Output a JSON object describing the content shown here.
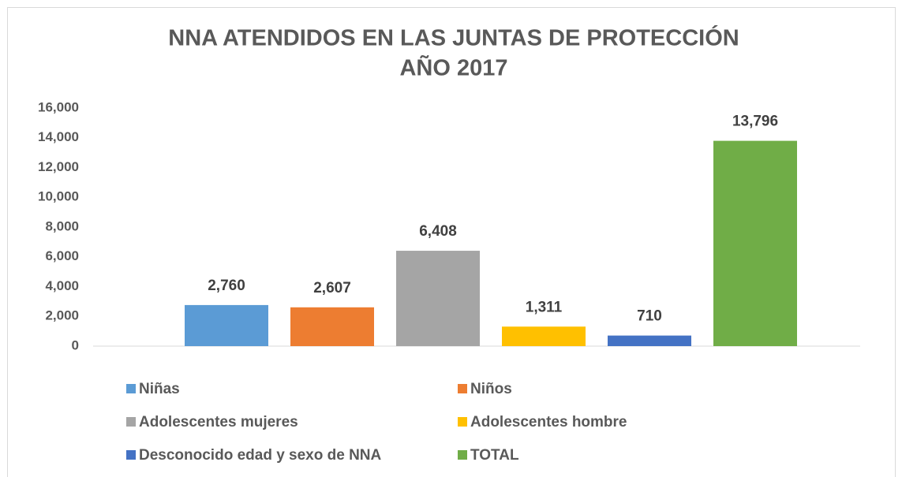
{
  "chart_data": {
    "type": "bar",
    "title": [
      "NNA ATENDIDOS EN LAS JUNTAS DE PROTECCIÓN",
      "AÑO 2017"
    ],
    "categories": [
      null
    ],
    "series": [
      {
        "name": "Niñas",
        "color": "#5b9bd5",
        "values": [
          2760
        ],
        "value_labels": [
          "2,760"
        ]
      },
      {
        "name": "Niños",
        "color": "#ed7d31",
        "values": [
          2607
        ],
        "value_labels": [
          "2,607"
        ]
      },
      {
        "name": "Adolescentes mujeres",
        "color": "#a5a5a5",
        "values": [
          6408
        ],
        "value_labels": [
          "6,408"
        ]
      },
      {
        "name": "Adolescentes hombre",
        "color": "#ffc000",
        "values": [
          1311
        ],
        "value_labels": [
          "1,311"
        ]
      },
      {
        "name": "Desconocido edad y sexo de NNA",
        "color": "#4472c4",
        "values": [
          710
        ],
        "value_labels": [
          "710"
        ]
      },
      {
        "name": "TOTAL",
        "color": "#70ad47",
        "values": [
          13796
        ],
        "value_labels": [
          "13,796"
        ]
      }
    ],
    "ylim": [
      0,
      16000
    ],
    "yticks": [
      0,
      {
        "value": 2000,
        "label": "2,000"
      },
      {
        "value": 4000,
        "label": "4,000"
      },
      {
        "value": 6000,
        "label": "6,000"
      },
      {
        "value": 8000,
        "label": "8,000"
      },
      {
        "value": 10000,
        "label": "10,000"
      },
      {
        "value": 12000,
        "label": "12,000"
      },
      {
        "value": 14000,
        "label": "14,000"
      },
      {
        "value": 16000,
        "label": "16,000"
      }
    ],
    "grid": false,
    "legend": "bottom"
  }
}
